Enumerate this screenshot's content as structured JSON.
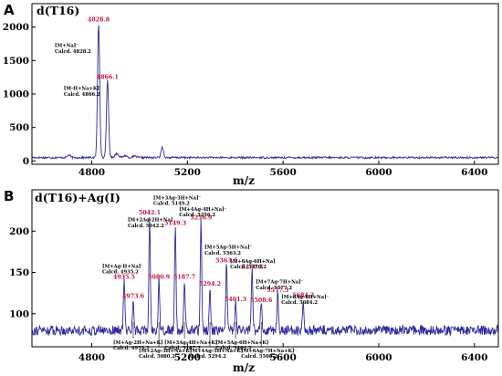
{
  "colors": {
    "trace": "#2b2b9c",
    "peak_label": "#c0143c",
    "axis": "#000000"
  },
  "chart_data": [
    {
      "panel": "A",
      "type": "line",
      "title": "d(T16)",
      "xlabel": "m/z",
      "ylabel": "",
      "xlim": [
        4550,
        6500
      ],
      "ylim": [
        -50,
        2350
      ],
      "xticks": [
        "4800",
        "5200",
        "5600",
        "6000",
        "6400"
      ],
      "yticks": [
        "0",
        "500",
        "1000",
        "1500",
        "2000"
      ],
      "baseline": 50,
      "noise": 14,
      "peaks": [
        {
          "x": 4828.8,
          "y": 2060,
          "w": 4.5
        },
        {
          "x": 4866.1,
          "y": 1200,
          "w": 4.5
        },
        {
          "x": 4905,
          "y": 110,
          "w": 8
        },
        {
          "x": 4940,
          "y": 80,
          "w": 7
        },
        {
          "x": 4980,
          "y": 70,
          "w": 8
        },
        {
          "x": 4705,
          "y": 90,
          "w": 6
        },
        {
          "x": 5095,
          "y": 210,
          "w": 5
        }
      ],
      "peak_labels": [
        {
          "x": 4828.8,
          "y": 2060,
          "text": "4828.8"
        },
        {
          "x": 4866.1,
          "y": 1200,
          "text": "4866.1"
        }
      ],
      "annotations": [
        {
          "x": 4828.8,
          "y": 1700,
          "lines": [
            "[M+Na]⁻",
            "Calcd. 4828.2"
          ]
        },
        {
          "x": 4866.1,
          "y": 1060,
          "lines": [
            "[M-H+Na+K]",
            "Calcd. 4866.2"
          ]
        }
      ]
    },
    {
      "panel": "B",
      "type": "line",
      "title": "d(T16)+Ag(I)",
      "xlabel": "m/z",
      "ylabel": "",
      "xlim": [
        4550,
        6500
      ],
      "ylim": [
        60,
        250
      ],
      "xticks": [
        "4800",
        "5200",
        "5600",
        "6000",
        "6400"
      ],
      "yticks": [
        "100",
        "150",
        "200"
      ],
      "baseline": 80,
      "noise": 6,
      "peaks": [
        {
          "x": 4935.5,
          "y": 140,
          "w": 3
        },
        {
          "x": 4973.6,
          "y": 117,
          "w": 3
        },
        {
          "x": 5042.1,
          "y": 218,
          "w": 3
        },
        {
          "x": 5080.9,
          "y": 140,
          "w": 3
        },
        {
          "x": 5149.3,
          "y": 205,
          "w": 3
        },
        {
          "x": 5187.7,
          "y": 140,
          "w": 3
        },
        {
          "x": 5256.9,
          "y": 212,
          "w": 3
        },
        {
          "x": 5294.2,
          "y": 132,
          "w": 3
        },
        {
          "x": 5363.5,
          "y": 160,
          "w": 3
        },
        {
          "x": 5401.3,
          "y": 113,
          "w": 3
        },
        {
          "x": 5470.3,
          "y": 152,
          "w": 3
        },
        {
          "x": 5508.6,
          "y": 112,
          "w": 3
        },
        {
          "x": 5577.5,
          "y": 124,
          "w": 3
        },
        {
          "x": 5684.3,
          "y": 118,
          "w": 3
        }
      ],
      "peak_labels": [
        {
          "x": 4935.5,
          "y": 140,
          "text": "4935.5"
        },
        {
          "x": 4973.6,
          "y": 117,
          "text": "4973.6"
        },
        {
          "x": 5042.1,
          "y": 218,
          "text": "5042.1"
        },
        {
          "x": 5080.9,
          "y": 140,
          "text": "5080.9"
        },
        {
          "x": 5149.3,
          "y": 205,
          "text": "5149.3"
        },
        {
          "x": 5187.7,
          "y": 140,
          "text": "5187.7"
        },
        {
          "x": 5256.9,
          "y": 212,
          "text": "5256.9"
        },
        {
          "x": 5294.2,
          "y": 132,
          "text": "5294.2"
        },
        {
          "x": 5363.5,
          "y": 160,
          "text": "5363.5"
        },
        {
          "x": 5401.3,
          "y": 113,
          "text": "5401.3"
        },
        {
          "x": 5470.3,
          "y": 152,
          "text": "5470.3"
        },
        {
          "x": 5508.6,
          "y": 112,
          "text": "5508.6"
        },
        {
          "x": 5577.5,
          "y": 124,
          "text": "5577.5"
        },
        {
          "x": 5684.3,
          "y": 118,
          "text": "5684.3"
        }
      ],
      "annotations": [
        {
          "x": 4935.5,
          "y": 149,
          "lines": [
            "[M+Ag-H+Na]⁻",
            "Calcd. 4935.2"
          ]
        },
        {
          "x": 5042.1,
          "y": 205,
          "lines": [
            "[M+2Ag-2H+Na]",
            "Calcd. 5042.2"
          ]
        },
        {
          "x": 5149.3,
          "y": 232,
          "lines": [
            "[M+3Ag-3H+Na]⁻",
            "Calcd. 5149.2"
          ]
        },
        {
          "x": 5256.9,
          "y": 218,
          "lines": [
            "[M+4Ag-4H+Na]⁻",
            "Calcd. 5256.2"
          ]
        },
        {
          "x": 5363.5,
          "y": 172,
          "lines": [
            "[M+5Ag-5H+Na]⁻",
            "Calcd. 5363.2"
          ]
        },
        {
          "x": 5470.3,
          "y": 155,
          "lines": [
            "[M+6Ag-6H+Na]",
            "Calcd. 5470.2"
          ]
        },
        {
          "x": 5577.5,
          "y": 130,
          "lines": [
            "[M+7Ag-7H+Na]⁻",
            "Calcd. 5577.2"
          ]
        },
        {
          "x": 5684.3,
          "y": 112,
          "lines": [
            "[M+8Ag-8H+Na]⁻",
            "Calcd. 5684.2"
          ]
        },
        {
          "x": 4973.6,
          "y": 68,
          "lines": [
            "[M+Ag-2H+Na+K]",
            "Calcd. 4973.2"
          ]
        },
        {
          "x": 5080.9,
          "y": 58,
          "lines": [
            "[M+2Ag-3H+Na+K]⁻",
            "Calcd. 5080.2"
          ]
        },
        {
          "x": 5187.7,
          "y": 68,
          "lines": [
            "[M+3Ag-4H+Na+K]⁻",
            "Calcd. 5187.2"
          ]
        },
        {
          "x": 5294.2,
          "y": 58,
          "lines": [
            "[M+4Ag-5H+Na+K]⁻",
            "Calcd. 5294.2"
          ]
        },
        {
          "x": 5401.3,
          "y": 68,
          "lines": [
            "[M+5Ag-6H+Na+K]",
            "Calcd. 5401.2"
          ]
        },
        {
          "x": 5508.6,
          "y": 58,
          "lines": [
            "[M+6Ag-7H+Na+K]⁻",
            "Calcd. 5508.2"
          ]
        }
      ]
    }
  ]
}
